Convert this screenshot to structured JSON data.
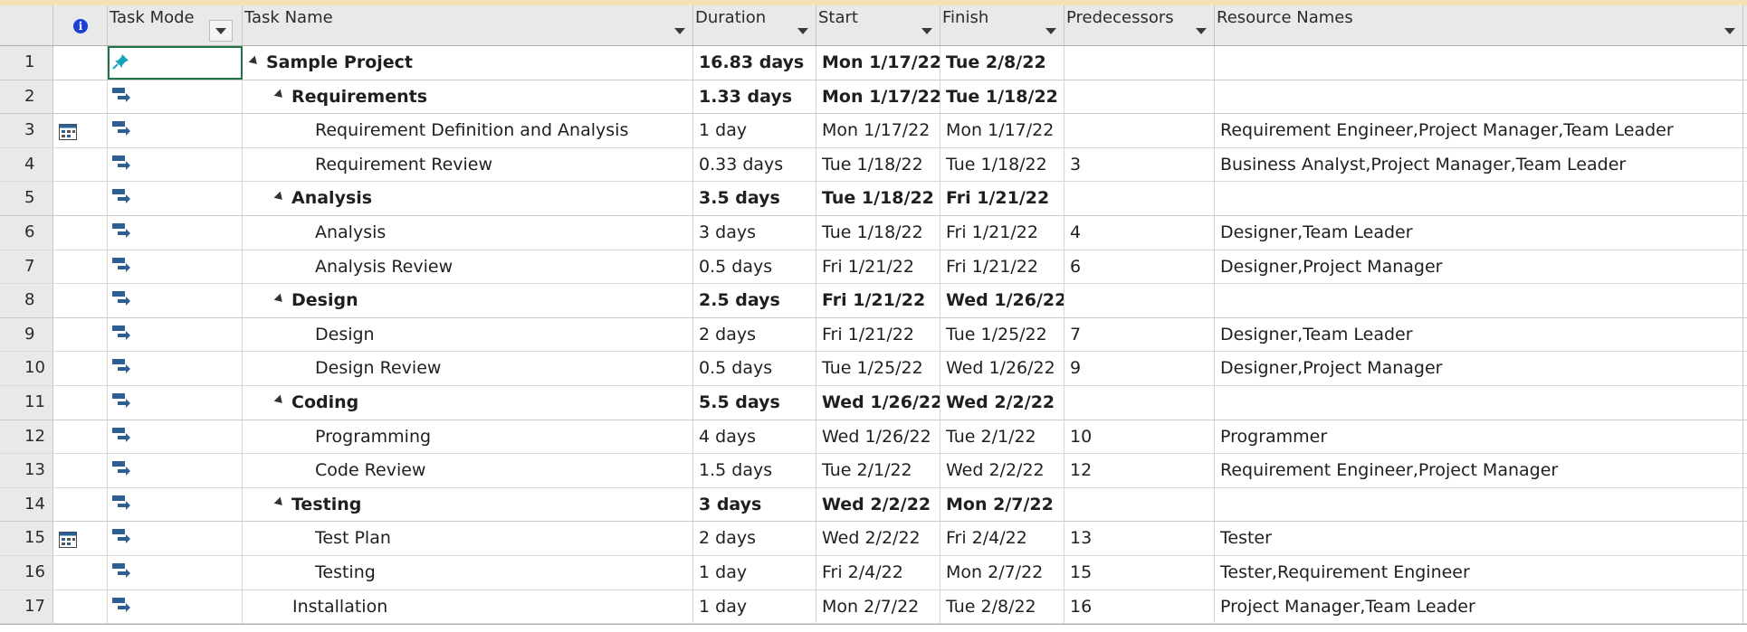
{
  "columns": {
    "id": "",
    "indicators": "i",
    "task_mode": "Task Mode",
    "task_name": "Task Name",
    "duration": "Duration",
    "start": "Start",
    "finish": "Finish",
    "predecessors": "Predecessors",
    "resource_names": "Resource Names"
  },
  "rows": [
    {
      "id": "1",
      "name": "Sample Project",
      "duration": "16.83 days",
      "start": "Mon 1/17/22",
      "finish": "Tue 2/8/22",
      "pred": "",
      "res": "",
      "level": 0,
      "summary": true,
      "mode": "manual",
      "indicator": ""
    },
    {
      "id": "2",
      "name": "Requirements",
      "duration": "1.33 days",
      "start": "Mon 1/17/22",
      "finish": "Tue 1/18/22",
      "pred": "",
      "res": "",
      "level": 1,
      "summary": true,
      "mode": "auto",
      "indicator": ""
    },
    {
      "id": "3",
      "name": "Requirement Definition and Analysis",
      "duration": "1 day",
      "start": "Mon 1/17/22",
      "finish": "Mon 1/17/22",
      "pred": "",
      "res": "Requirement Engineer,Project Manager,Team Leader",
      "level": 2,
      "summary": false,
      "mode": "auto",
      "indicator": "calendar"
    },
    {
      "id": "4",
      "name": "Requirement Review",
      "duration": "0.33 days",
      "start": "Tue 1/18/22",
      "finish": "Tue 1/18/22",
      "pred": "3",
      "res": "Business Analyst,Project Manager,Team Leader",
      "level": 2,
      "summary": false,
      "mode": "auto",
      "indicator": ""
    },
    {
      "id": "5",
      "name": "Analysis",
      "duration": "3.5 days",
      "start": "Tue 1/18/22",
      "finish": "Fri 1/21/22",
      "pred": "",
      "res": "",
      "level": 1,
      "summary": true,
      "mode": "auto",
      "indicator": ""
    },
    {
      "id": "6",
      "name": "Analysis",
      "duration": "3 days",
      "start": "Tue 1/18/22",
      "finish": "Fri 1/21/22",
      "pred": "4",
      "res": "Designer,Team Leader",
      "level": 2,
      "summary": false,
      "mode": "auto",
      "indicator": ""
    },
    {
      "id": "7",
      "name": "Analysis Review",
      "duration": "0.5 days",
      "start": "Fri 1/21/22",
      "finish": "Fri 1/21/22",
      "pred": "6",
      "res": "Designer,Project Manager",
      "level": 2,
      "summary": false,
      "mode": "auto",
      "indicator": ""
    },
    {
      "id": "8",
      "name": "Design",
      "duration": "2.5 days",
      "start": "Fri 1/21/22",
      "finish": "Wed 1/26/22",
      "pred": "",
      "res": "",
      "level": 1,
      "summary": true,
      "mode": "auto",
      "indicator": ""
    },
    {
      "id": "9",
      "name": "Design",
      "duration": "2 days",
      "start": "Fri 1/21/22",
      "finish": "Tue 1/25/22",
      "pred": "7",
      "res": "Designer,Team Leader",
      "level": 2,
      "summary": false,
      "mode": "auto",
      "indicator": ""
    },
    {
      "id": "10",
      "name": "Design Review",
      "duration": "0.5 days",
      "start": "Tue 1/25/22",
      "finish": "Wed 1/26/22",
      "pred": "9",
      "res": "Designer,Project Manager",
      "level": 2,
      "summary": false,
      "mode": "auto",
      "indicator": ""
    },
    {
      "id": "11",
      "name": "Coding",
      "duration": "5.5 days",
      "start": "Wed 1/26/22",
      "finish": "Wed 2/2/22",
      "pred": "",
      "res": "",
      "level": 1,
      "summary": true,
      "mode": "auto",
      "indicator": ""
    },
    {
      "id": "12",
      "name": "Programming",
      "duration": "4 days",
      "start": "Wed 1/26/22",
      "finish": "Tue 2/1/22",
      "pred": "10",
      "res": "Programmer",
      "level": 2,
      "summary": false,
      "mode": "auto",
      "indicator": ""
    },
    {
      "id": "13",
      "name": "Code Review",
      "duration": "1.5 days",
      "start": "Tue 2/1/22",
      "finish": "Wed 2/2/22",
      "pred": "12",
      "res": "Requirement Engineer,Project Manager",
      "level": 2,
      "summary": false,
      "mode": "auto",
      "indicator": ""
    },
    {
      "id": "14",
      "name": "Testing",
      "duration": "3 days",
      "start": "Wed 2/2/22",
      "finish": "Mon 2/7/22",
      "pred": "",
      "res": "",
      "level": 1,
      "summary": true,
      "mode": "auto",
      "indicator": ""
    },
    {
      "id": "15",
      "name": "Test Plan",
      "duration": "2 days",
      "start": "Wed 2/2/22",
      "finish": "Fri 2/4/22",
      "pred": "13",
      "res": "Tester",
      "level": 2,
      "summary": false,
      "mode": "auto",
      "indicator": "calendar"
    },
    {
      "id": "16",
      "name": "Testing",
      "duration": "1 day",
      "start": "Fri 2/4/22",
      "finish": "Mon 2/7/22",
      "pred": "15",
      "res": "Tester,Requirement Engineer",
      "level": 2,
      "summary": false,
      "mode": "auto",
      "indicator": ""
    },
    {
      "id": "17",
      "name": "Installation",
      "duration": "1 day",
      "start": "Mon 2/7/22",
      "finish": "Tue 2/8/22",
      "pred": "16",
      "res": "Project Manager,Team Leader",
      "level": 1,
      "summary": false,
      "mode": "auto",
      "indicator": ""
    }
  ],
  "colors": {
    "header_bg": "#e9e9e9",
    "accent": "#217346",
    "icon_blue": "#2e5f93",
    "pin": "#14a3b8"
  }
}
